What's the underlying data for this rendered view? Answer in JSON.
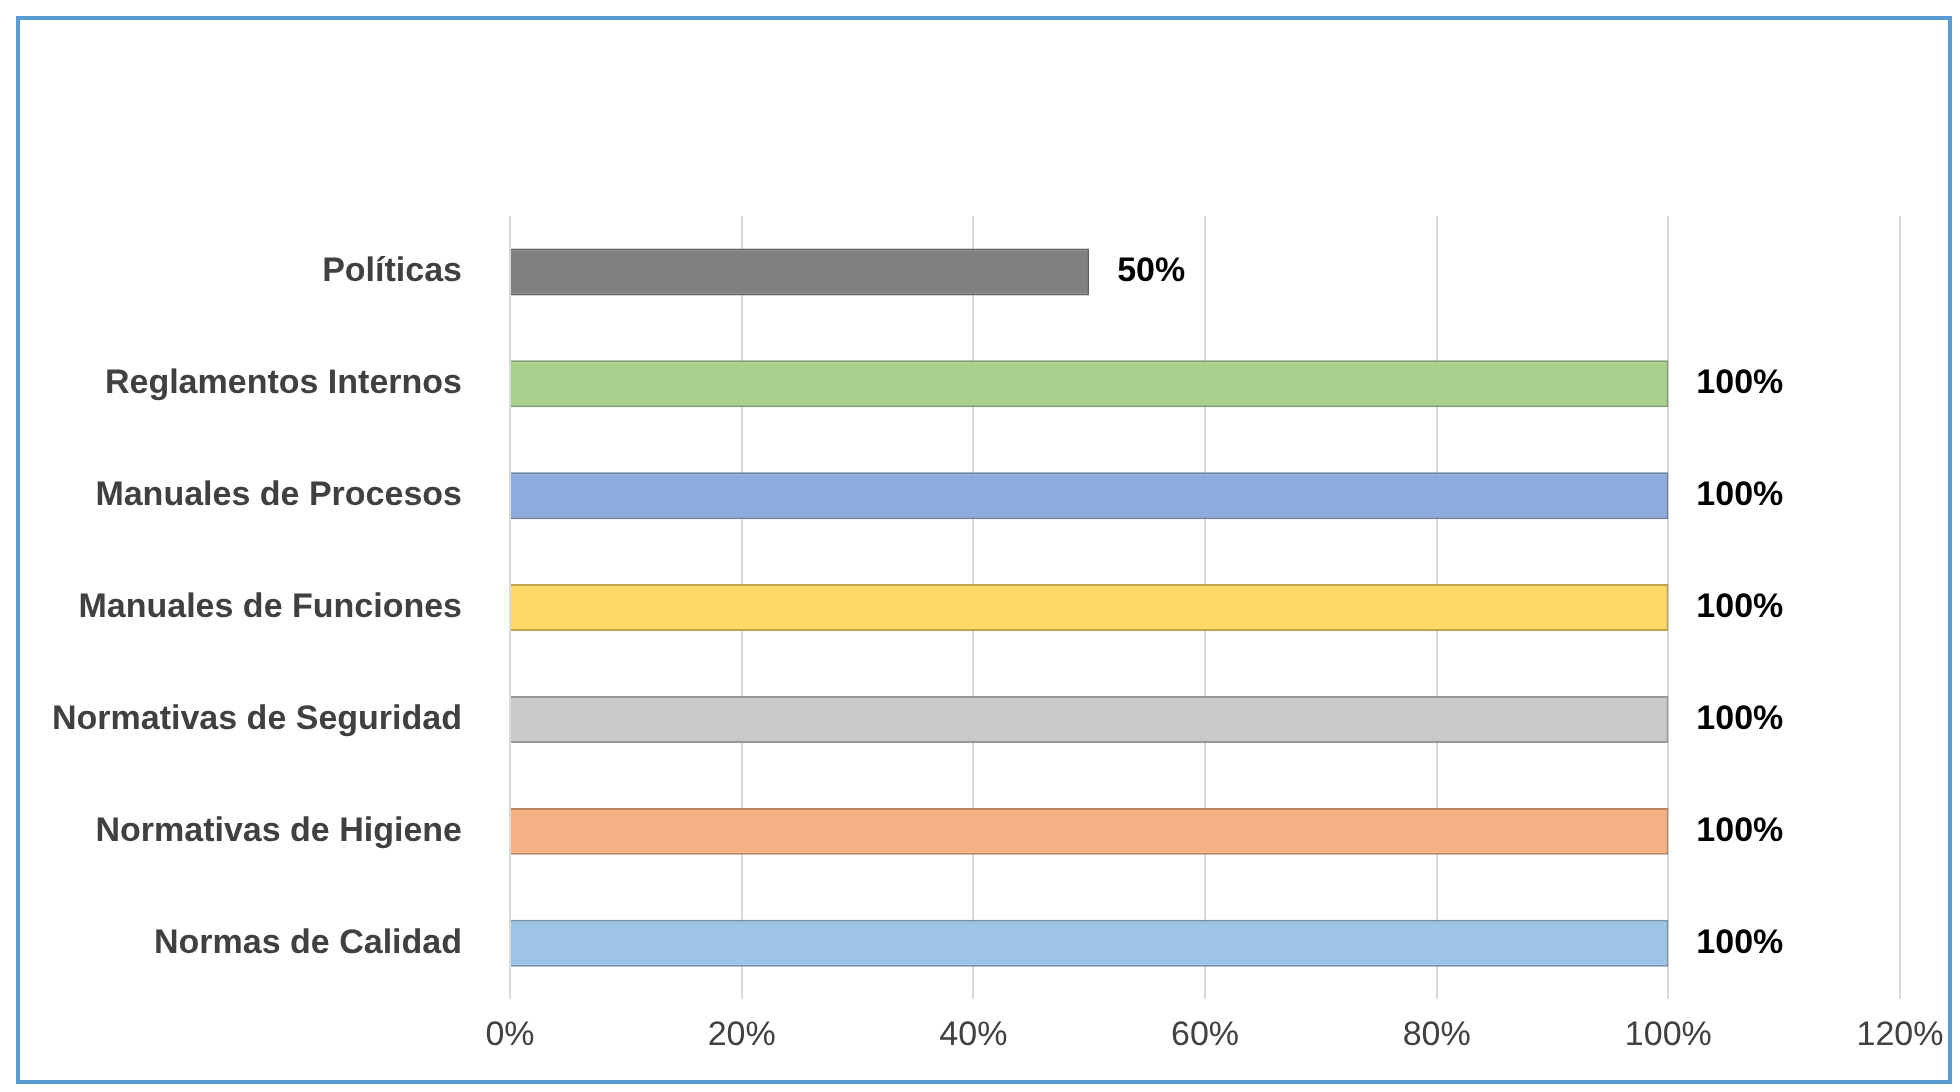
{
  "chart_data": {
    "type": "bar",
    "orientation": "horizontal",
    "categories": [
      "Políticas",
      "Reglamentos Internos",
      "Manuales de Procesos",
      "Manuales de Funciones",
      "Normativas de Seguridad",
      "Normativas de Higiene",
      "Normas de Calidad"
    ],
    "values": [
      50,
      100,
      100,
      100,
      100,
      100,
      100
    ],
    "colors": [
      "#808080",
      "#a9d18e",
      "#8faadc",
      "#ffd966",
      "#c9c9c9",
      "#f4b183",
      "#9dc3e6"
    ],
    "value_labels": [
      "50%",
      "100%",
      "100%",
      "100%",
      "100%",
      "100%",
      "100%"
    ],
    "xlim": [
      0,
      120
    ],
    "xticks": [
      {
        "value": 0,
        "label": "0%"
      },
      {
        "value": 20,
        "label": "20%"
      },
      {
        "value": 40,
        "label": "40%"
      },
      {
        "value": 60,
        "label": "60%"
      },
      {
        "value": 80,
        "label": "80%"
      },
      {
        "value": 100,
        "label": "100%"
      },
      {
        "value": 120,
        "label": "120%"
      }
    ],
    "grid": "x"
  }
}
